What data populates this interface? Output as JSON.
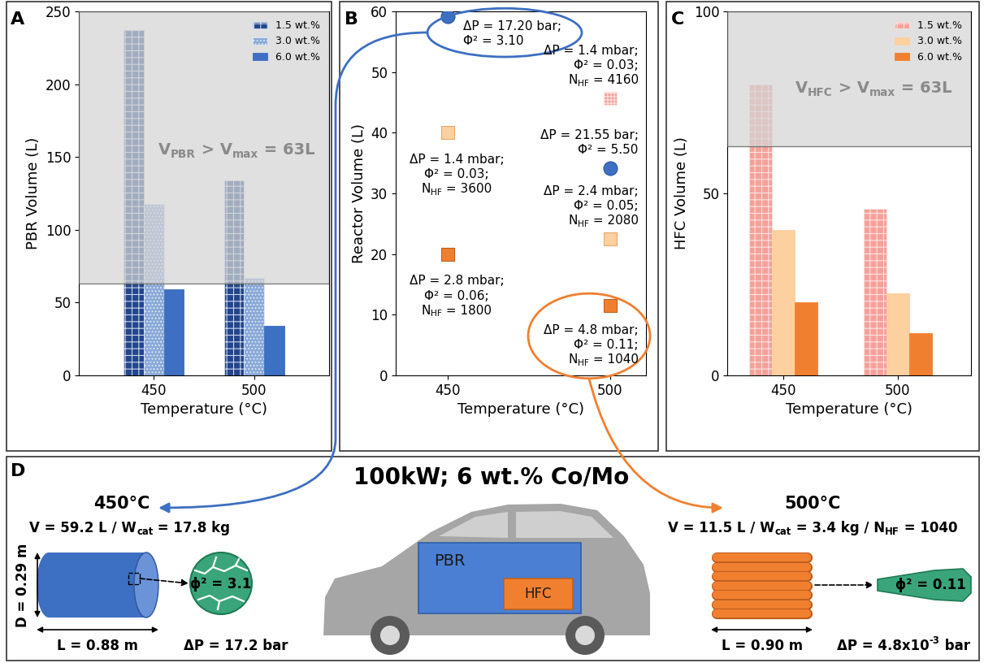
{
  "chart_data": [
    {
      "type": "bar",
      "panel_label": "A",
      "x_label": "Temperature (°C)",
      "y_label": "PBR Volume (L)",
      "categories": [
        "450",
        "500"
      ],
      "series": [
        {
          "name": "1.5 wt.%",
          "color": "#23468a",
          "values": [
            237,
            134
          ]
        },
        {
          "name": "3.0 wt.%",
          "color": "#8aa9d8",
          "values": [
            118,
            67
          ]
        },
        {
          "name": "6.0 wt.%",
          "color": "#3d6fc2",
          "values": [
            59.2,
            34.2
          ]
        }
      ],
      "ylim": [
        0,
        250
      ],
      "yticks": [
        0,
        50,
        100,
        150,
        200,
        250
      ],
      "legend": "upper right",
      "max_volume": 63,
      "max_volume_label": [
        "V",
        {
          "sub": "PBR"
        },
        " > V",
        {
          "sub": "max"
        },
        " = 63L"
      ]
    },
    {
      "type": "scatter",
      "panel_label": "B",
      "x_label": "Temperature (°C)",
      "y_label": "Reactor Volume (L)",
      "categories": [
        "450",
        "500"
      ],
      "series": [
        {
          "color": "#3d6fc2",
          "marker": "circle",
          "values": [
            59.2,
            34.2
          ],
          "annotations": [
            [
              "ΔP = 17.20 bar;",
              "Φ² = 3.10"
            ],
            [
              "ΔP = 21.55 bar;",
              "Φ² = 5.50"
            ]
          ]
        },
        {
          "color": "#f4a19a",
          "marker": "square",
          "values": [
            null,
            45.7
          ],
          "annotations": [
            null,
            [
              "ΔP = 1.4 mbar;",
              "Φ² = 0.03;",
              [
                "N",
                {
                  "sub": "HF"
                },
                " = 4160"
              ]
            ]
          ]
        },
        {
          "color": "#fdd0a0",
          "marker": "square",
          "values": [
            40,
            22.5
          ],
          "annotations": [
            [
              "ΔP = 1.4 mbar;",
              "Φ² = 0.03;",
              [
                "N",
                {
                  "sub": "HF"
                },
                " = 3600"
              ]
            ],
            [
              "ΔP = 2.4 mbar;",
              "Φ² = 0.05;",
              [
                "N",
                {
                  "sub": "HF"
                },
                " = 2080"
              ]
            ]
          ]
        },
        {
          "color": "#f08030",
          "marker": "square",
          "values": [
            20,
            11.5
          ],
          "annotations": [
            [
              "ΔP = 2.8 mbar;",
              "Φ² = 0.06;",
              [
                "N",
                {
                  "sub": "HF"
                },
                " = 1800"
              ]
            ],
            [
              "ΔP = 4.8 mbar;",
              "Φ² = 0.11;",
              [
                "N",
                {
                  "sub": "HF"
                },
                " = 1040"
              ]
            ]
          ]
        }
      ],
      "ylim": [
        0,
        60
      ],
      "yticks": [
        0,
        10,
        20,
        30,
        40,
        50,
        60
      ]
    },
    {
      "type": "bar",
      "panel_label": "C",
      "x_label": "Temperature (°C)",
      "y_label": "HFC Volume (L)",
      "categories": [
        "450",
        "500"
      ],
      "series": [
        {
          "name": "1.5 wt.%",
          "color": "#f4a19a",
          "values": [
            80,
            45.7
          ]
        },
        {
          "name": "3.0 wt.%",
          "color": "#fdd0a0",
          "values": [
            40,
            22.5
          ]
        },
        {
          "name": "6.0 wt.%",
          "color": "#f08030",
          "values": [
            20,
            11.5
          ]
        }
      ],
      "ylim": [
        0,
        100
      ],
      "yticks": [
        0,
        50,
        100
      ],
      "legend": "upper right",
      "max_volume": 63,
      "max_volume_label": [
        "V",
        {
          "sub": "HFC"
        },
        " > V",
        {
          "sub": "max"
        },
        " = 63L"
      ]
    }
  ],
  "diagram": {
    "panel_label": "D",
    "title": "100kW; 6 wt.% Co/Mo",
    "vehicle": {
      "reactor_label": "PBR",
      "fiber_label": "HFC"
    },
    "left": {
      "temperature": "450°C",
      "summary": [
        "V = 59.2 L / W",
        {
          "sub": "cat"
        },
        " = 17.8 kg"
      ],
      "diameter": "D = 0.29 m",
      "length": "L = 0.88 m",
      "permeability": "ϕ² = 3.1",
      "pressure_drop": "ΔP = 17.2 bar"
    },
    "right": {
      "temperature": "500°C",
      "summary": [
        "V = 11.5 L / W",
        {
          "sub": "cat"
        },
        " = 3.4 kg / N",
        {
          "sub": "HF"
        },
        " = 1040"
      ],
      "length": "L = 0.90 m",
      "permeability": "ϕ² = 0.11",
      "pressure_drop": [
        "ΔP = 4.8x10",
        {
          "sup": "-3"
        },
        " bar"
      ]
    }
  }
}
